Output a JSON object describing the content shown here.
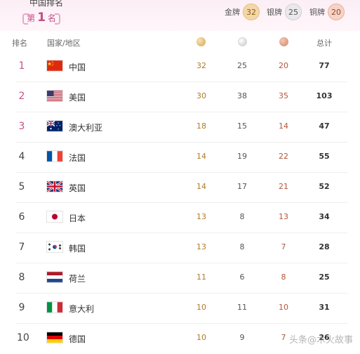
{
  "header": {
    "title": "中国排名",
    "rank_prefix": "第",
    "rank_value": "1",
    "rank_suffix": "名",
    "gold_label": "金牌",
    "gold_count": "32",
    "silver_label": "银牌",
    "silver_count": "25",
    "bronze_label": "铜牌",
    "bronze_count": "20"
  },
  "table": {
    "col_rank": "排名",
    "col_country": "国家/地区",
    "col_total": "总计",
    "rows": [
      {
        "rank": "1",
        "name": "中国",
        "gold": "32",
        "silver": "25",
        "bronze": "20",
        "total": "77",
        "flag": "china-flag"
      },
      {
        "rank": "2",
        "name": "美国",
        "gold": "30",
        "silver": "38",
        "bronze": "35",
        "total": "103",
        "flag": "usa-flag"
      },
      {
        "rank": "3",
        "name": "澳大利亚",
        "gold": "18",
        "silver": "15",
        "bronze": "14",
        "total": "47",
        "flag": "australia-flag"
      },
      {
        "rank": "4",
        "name": "法国",
        "gold": "14",
        "silver": "19",
        "bronze": "22",
        "total": "55",
        "flag": "france-flag"
      },
      {
        "rank": "5",
        "name": "英国",
        "gold": "14",
        "silver": "17",
        "bronze": "21",
        "total": "52",
        "flag": "uk-flag"
      },
      {
        "rank": "6",
        "name": "日本",
        "gold": "13",
        "silver": "8",
        "bronze": "13",
        "total": "34",
        "flag": "japan-flag"
      },
      {
        "rank": "7",
        "name": "韩国",
        "gold": "13",
        "silver": "8",
        "bronze": "7",
        "total": "28",
        "flag": "korea-flag"
      },
      {
        "rank": "8",
        "name": "荷兰",
        "gold": "11",
        "silver": "6",
        "bronze": "8",
        "total": "25",
        "flag": "netherlands-flag"
      },
      {
        "rank": "9",
        "name": "意大利",
        "gold": "10",
        "silver": "11",
        "bronze": "10",
        "total": "31",
        "flag": "italy-flag"
      },
      {
        "rank": "10",
        "name": "德国",
        "gold": "10",
        "silver": "9",
        "bronze": "7",
        "total": "26",
        "flag": "germany-flag"
      }
    ]
  },
  "watermark": "头条@木火故事",
  "colors": {
    "accent": "#c84f8b",
    "gold": "#b07a2a",
    "bronze": "#b4553a"
  }
}
